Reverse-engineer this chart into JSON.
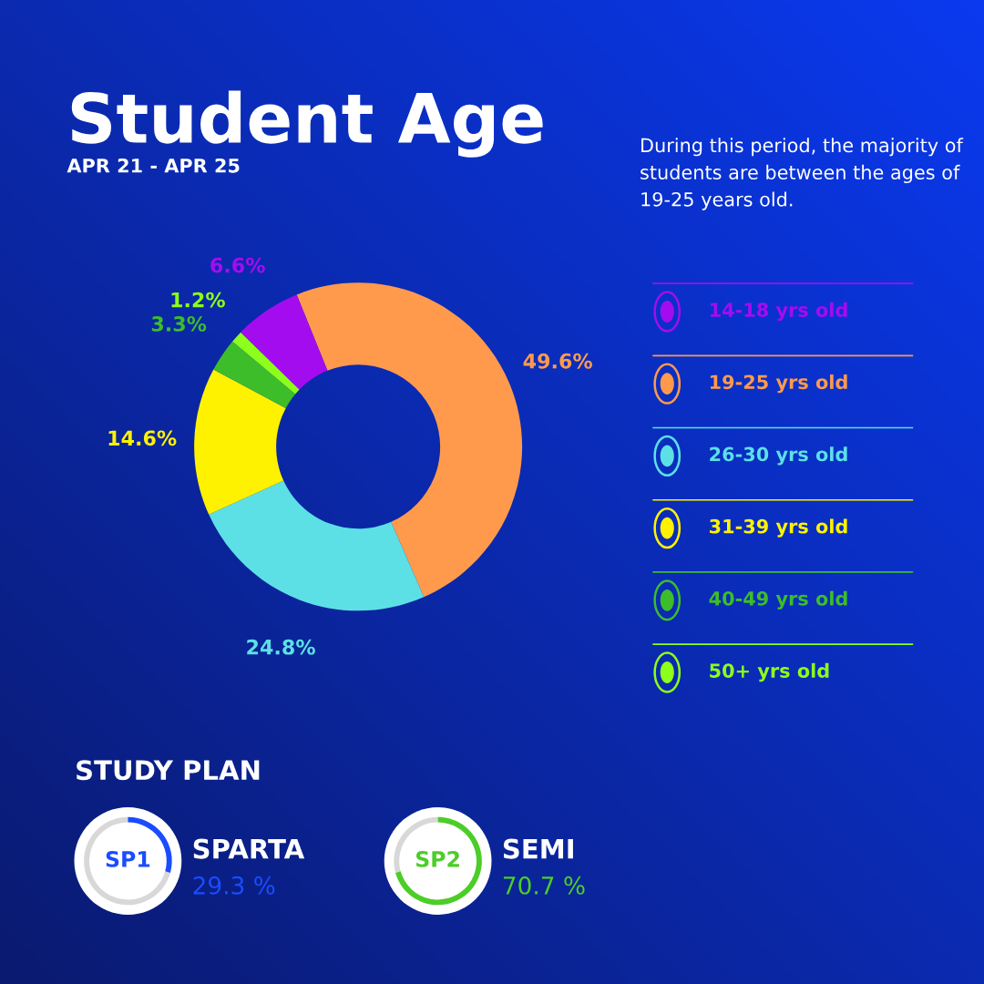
{
  "chart_data": [
    {
      "type": "donut",
      "title": "Student Age",
      "subtitle": "APR 21 - APR 25",
      "categories": [
        "19-25 yrs old",
        "26-30 yrs old",
        "31-39 yrs old",
        "40-49 yrs old",
        "50+ yrs old",
        "14-18 yrs old"
      ],
      "values": [
        49.6,
        24.8,
        14.6,
        3.3,
        1.2,
        6.6
      ],
      "colors": [
        "#ff9a4d",
        "#5ce0e6",
        "#fff200",
        "#3dbd2a",
        "#8cff1a",
        "#a40cf0"
      ],
      "value_labels": [
        "49.6%",
        "24.8%",
        "14.6%",
        "3.3%",
        "1.2%",
        "6.6%"
      ],
      "legend": "right",
      "annotations": [
        "During this period, the majority of students are between the ages of 19-25 years old."
      ]
    },
    {
      "type": "other",
      "title": "STUDY PLAN",
      "categories": [
        "SPARTA",
        "SEMI"
      ],
      "values": [
        29.3,
        70.7
      ],
      "colors": [
        "#1a4cff",
        "#4ccd28"
      ],
      "value_labels": [
        "29.3 %",
        "70.7 %"
      ],
      "annotations": [
        "SP1",
        "SP2"
      ]
    }
  ]
}
